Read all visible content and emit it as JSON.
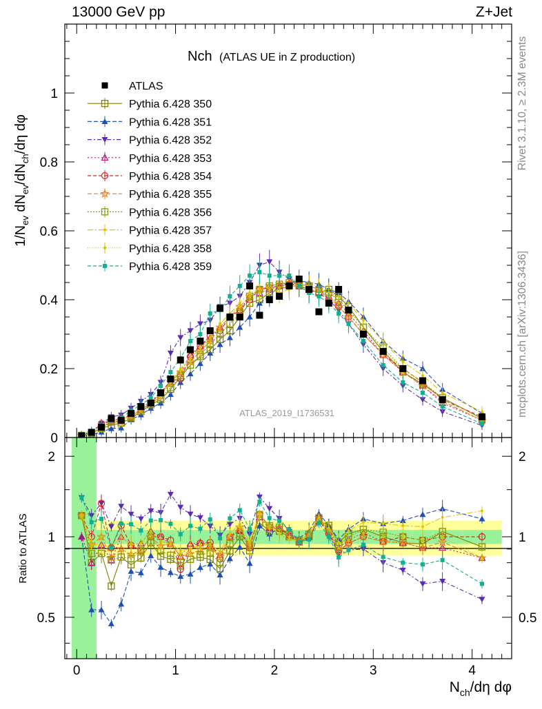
{
  "header": {
    "energy": "13000 GeV pp",
    "process": "Z+Jet"
  },
  "side_labels": {
    "top": "Rivet 3.1.10, ≥ 2.3M events",
    "bottom": "mcplots.cern.ch [arXiv:1306.3436]"
  },
  "chart_data": [
    {
      "type": "line",
      "title_main": "Nch",
      "title_sub": "(ATLAS UE in Z production)",
      "ylabel": "1/N_ev dN_ev/dN_ch/dη dφ",
      "xlabel": "N_ch/dη dφ",
      "xlim": [
        -0.12,
        4.4
      ],
      "ylim": [
        0,
        1.2
      ],
      "y_ticks": [
        0,
        0.2,
        0.4,
        0.6,
        0.8,
        1
      ],
      "y_tick_labels": [
        "0",
        "0.2",
        "0.4",
        "0.6",
        "0.8",
        "1"
      ],
      "x_ticks": [
        0,
        1,
        2,
        3,
        4
      ],
      "x_tick_labels": [
        "0",
        "1",
        "2",
        "3",
        "4"
      ],
      "watermark": "ATLAS_2019_I1736531",
      "legend_position": "top-left",
      "data_series": {
        "name": "ATLAS",
        "x": [
          0.05,
          0.15,
          0.25,
          0.35,
          0.45,
          0.55,
          0.65,
          0.75,
          0.85,
          0.95,
          1.05,
          1.15,
          1.25,
          1.35,
          1.45,
          1.55,
          1.65,
          1.75,
          1.85,
          1.95,
          2.05,
          2.15,
          2.25,
          2.35,
          2.45,
          2.55,
          2.65,
          2.75,
          2.9,
          3.1,
          3.3,
          3.5,
          3.7,
          4.1
        ],
        "y": [
          0.005,
          0.015,
          0.03,
          0.055,
          0.05,
          0.07,
          0.09,
          0.1,
          0.13,
          0.17,
          0.225,
          0.255,
          0.28,
          0.31,
          0.375,
          0.35,
          0.35,
          0.44,
          0.355,
          0.4,
          0.41,
          0.44,
          0.46,
          0.43,
          0.365,
          0.39,
          0.43,
          0.37,
          0.3,
          0.25,
          0.2,
          0.165,
          0.11,
          0.06
        ]
      },
      "series": [
        {
          "name": "Pythia 6.428 350",
          "color": "#808000",
          "marker": "square-open",
          "dash": "solid",
          "y": [
            0.006,
            0.012,
            0.026,
            0.036,
            0.042,
            0.055,
            0.075,
            0.095,
            0.11,
            0.14,
            0.175,
            0.21,
            0.235,
            0.255,
            0.285,
            0.31,
            0.35,
            0.39,
            0.4,
            0.42,
            0.43,
            0.44,
            0.44,
            0.43,
            0.42,
            0.43,
            0.41,
            0.38,
            0.32,
            0.25,
            0.19,
            0.155,
            0.115,
            0.055
          ]
        },
        {
          "name": "Pythia 6.428 351",
          "color": "#1f4fb4",
          "marker": "triangle-up",
          "dash": "6,3",
          "y": [
            0.005,
            0.008,
            0.016,
            0.026,
            0.028,
            0.052,
            0.066,
            0.085,
            0.1,
            0.125,
            0.16,
            0.185,
            0.215,
            0.245,
            0.27,
            0.29,
            0.32,
            0.35,
            0.39,
            0.41,
            0.44,
            0.45,
            0.455,
            0.45,
            0.445,
            0.43,
            0.42,
            0.395,
            0.35,
            0.28,
            0.23,
            0.2,
            0.14,
            0.07
          ]
        },
        {
          "name": "Pythia 6.428 352",
          "color": "#5c2bb4",
          "marker": "triangle-down",
          "dash": "6,3,2,3",
          "y": [
            0.007,
            0.018,
            0.04,
            0.06,
            0.065,
            0.085,
            0.105,
            0.125,
            0.16,
            0.245,
            0.29,
            0.31,
            0.33,
            0.34,
            0.38,
            0.39,
            0.41,
            0.45,
            0.5,
            0.51,
            0.48,
            0.46,
            0.44,
            0.42,
            0.43,
            0.4,
            0.37,
            0.33,
            0.27,
            0.2,
            0.15,
            0.11,
            0.075,
            0.035
          ]
        },
        {
          "name": "Pythia 6.428 353",
          "color": "#b4187a",
          "marker": "triangle-open",
          "dash": "2,3",
          "y": [
            0.005,
            0.012,
            0.028,
            0.045,
            0.05,
            0.065,
            0.085,
            0.105,
            0.13,
            0.16,
            0.19,
            0.24,
            0.265,
            0.29,
            0.32,
            0.35,
            0.37,
            0.41,
            0.42,
            0.43,
            0.44,
            0.445,
            0.445,
            0.44,
            0.43,
            0.41,
            0.39,
            0.36,
            0.31,
            0.24,
            0.19,
            0.15,
            0.1,
            0.05
          ]
        },
        {
          "name": "Pythia 6.428 354",
          "color": "#d62020",
          "marker": "circle-open",
          "dash": "5,3",
          "y": [
            0.006,
            0.015,
            0.04,
            0.05,
            0.055,
            0.065,
            0.08,
            0.1,
            0.13,
            0.165,
            0.17,
            0.235,
            0.265,
            0.295,
            0.31,
            0.35,
            0.37,
            0.4,
            0.43,
            0.435,
            0.44,
            0.445,
            0.44,
            0.43,
            0.42,
            0.4,
            0.38,
            0.35,
            0.3,
            0.24,
            0.2,
            0.16,
            0.11,
            0.06
          ]
        },
        {
          "name": "Pythia 6.428 355",
          "color": "#f07c18",
          "marker": "star-open",
          "dash": "6,3",
          "y": [
            0.006,
            0.014,
            0.03,
            0.046,
            0.045,
            0.06,
            0.08,
            0.1,
            0.12,
            0.16,
            0.19,
            0.22,
            0.25,
            0.28,
            0.32,
            0.35,
            0.38,
            0.41,
            0.43,
            0.44,
            0.445,
            0.45,
            0.445,
            0.44,
            0.43,
            0.41,
            0.38,
            0.35,
            0.3,
            0.24,
            0.19,
            0.15,
            0.105,
            0.05
          ]
        },
        {
          "name": "Pythia 6.428 356",
          "color": "#8a9a0a",
          "marker": "square-open",
          "dash": "2,2",
          "y": [
            0.006,
            0.013,
            0.026,
            0.045,
            0.042,
            0.058,
            0.08,
            0.1,
            0.115,
            0.145,
            0.18,
            0.21,
            0.24,
            0.27,
            0.3,
            0.33,
            0.36,
            0.41,
            0.43,
            0.44,
            0.445,
            0.45,
            0.445,
            0.44,
            0.43,
            0.42,
            0.4,
            0.37,
            0.32,
            0.26,
            0.2,
            0.16,
            0.115,
            0.055
          ]
        },
        {
          "name": "Pythia 6.428 357",
          "color": "#e6c200",
          "marker": "dot-small",
          "dash": "8,3,2,3",
          "y": [
            0.006,
            0.014,
            0.028,
            0.05,
            0.05,
            0.065,
            0.085,
            0.105,
            0.125,
            0.16,
            0.2,
            0.23,
            0.26,
            0.29,
            0.33,
            0.36,
            0.39,
            0.42,
            0.43,
            0.44,
            0.42,
            0.43,
            0.445,
            0.44,
            0.43,
            0.42,
            0.41,
            0.39,
            0.34,
            0.28,
            0.22,
            0.18,
            0.13,
            0.075
          ]
        },
        {
          "name": "Pythia 6.428 358",
          "color": "#c8c800",
          "marker": "dot-small",
          "dash": "1,2",
          "y": [
            0.006,
            0.014,
            0.03,
            0.05,
            0.05,
            0.066,
            0.085,
            0.105,
            0.125,
            0.16,
            0.195,
            0.23,
            0.26,
            0.29,
            0.33,
            0.36,
            0.38,
            0.41,
            0.42,
            0.43,
            0.435,
            0.44,
            0.44,
            0.435,
            0.425,
            0.41,
            0.39,
            0.36,
            0.31,
            0.25,
            0.2,
            0.16,
            0.11,
            0.05
          ]
        },
        {
          "name": "Pythia 6.428 359",
          "color": "#10b090",
          "marker": "square-small",
          "dash": "5,3",
          "y": [
            0.007,
            0.017,
            0.035,
            0.05,
            0.056,
            0.078,
            0.095,
            0.115,
            0.15,
            0.19,
            0.23,
            0.28,
            0.3,
            0.36,
            0.37,
            0.41,
            0.44,
            0.47,
            0.48,
            0.47,
            0.47,
            0.47,
            0.44,
            0.42,
            0.41,
            0.39,
            0.36,
            0.33,
            0.28,
            0.21,
            0.16,
            0.13,
            0.09,
            0.04
          ]
        }
      ]
    },
    {
      "type": "line",
      "ylabel": "Ratio to ATLAS",
      "xlabel": "N_ch/dη dφ",
      "ylim": [
        0.35,
        2.35
      ],
      "y_scale": "log",
      "y_ticks": [
        0.5,
        1,
        2
      ],
      "y_tick_labels": [
        "0.5",
        "1",
        "2"
      ],
      "x_tick_labels": [
        "0",
        "1",
        "2",
        "3",
        "4"
      ],
      "band_inner_halfwidth": 0.06,
      "band_outer_halfwidth": 0.15
    }
  ]
}
